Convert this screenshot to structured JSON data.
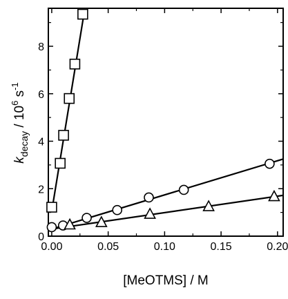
{
  "chart_data": {
    "type": "scatter",
    "xlabel": "[MeOTMS] / M",
    "ylabel": {
      "prefix": "k",
      "subscript": "decay",
      "middle": " / 10",
      "exponent": "6",
      "unit": " s",
      "unit_exponent": "-1"
    },
    "xlim": [
      -0.003,
      0.205
    ],
    "ylim": [
      0,
      9.6
    ],
    "x_ticks": [
      0.0,
      0.05,
      0.1,
      0.15,
      0.2
    ],
    "x_tick_labels": [
      "0.00",
      "0.05",
      "0.10",
      "0.15",
      "0.20"
    ],
    "y_ticks": [
      0,
      2,
      4,
      6,
      8
    ],
    "y_tick_labels": [
      "0",
      "2",
      "4",
      "6",
      "8"
    ],
    "grid": false,
    "series": [
      {
        "marker": "square",
        "x": [
          0.0,
          0.0075,
          0.0105,
          0.0155,
          0.0205,
          0.0275
        ],
        "y": [
          1.22,
          3.07,
          4.25,
          5.8,
          7.25,
          9.35
        ],
        "fit": {
          "x": [
            0.0,
            0.0285
          ],
          "y": [
            1.05,
            9.35
          ]
        }
      },
      {
        "marker": "circle",
        "x": [
          0.0,
          0.01,
          0.031,
          0.058,
          0.086,
          0.117,
          0.193
        ],
        "y": [
          0.38,
          0.45,
          0.77,
          1.1,
          1.63,
          1.95,
          3.05
        ],
        "fit": {
          "x": [
            0.0,
            0.205
          ],
          "y": [
            0.3,
            3.25
          ]
        }
      },
      {
        "marker": "triangle",
        "x": [
          0.016,
          0.044,
          0.087,
          0.139,
          0.197
        ],
        "y": [
          0.48,
          0.58,
          0.93,
          1.25,
          1.67
        ],
        "fit": {
          "x": [
            0.0,
            0.205
          ],
          "y": [
            0.3,
            1.72
          ]
        }
      }
    ]
  }
}
